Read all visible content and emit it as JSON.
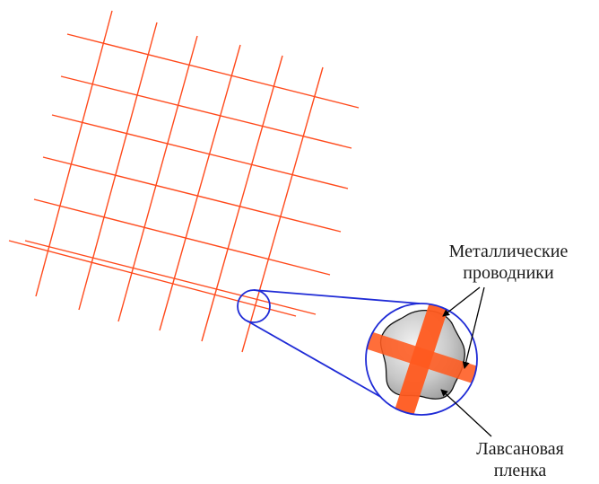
{
  "labels": {
    "conductors_line1": "Металлические",
    "conductors_line2": "проводники",
    "film_line1": "Лавсановая",
    "film_line2": "пленка"
  },
  "colors": {
    "grid_wire": "#ff4a1c",
    "conductor": "#ff5a1f",
    "magnifier": "#1f2bd6",
    "film_gray": "#bfbfbf",
    "text": "#1a1a1a"
  }
}
